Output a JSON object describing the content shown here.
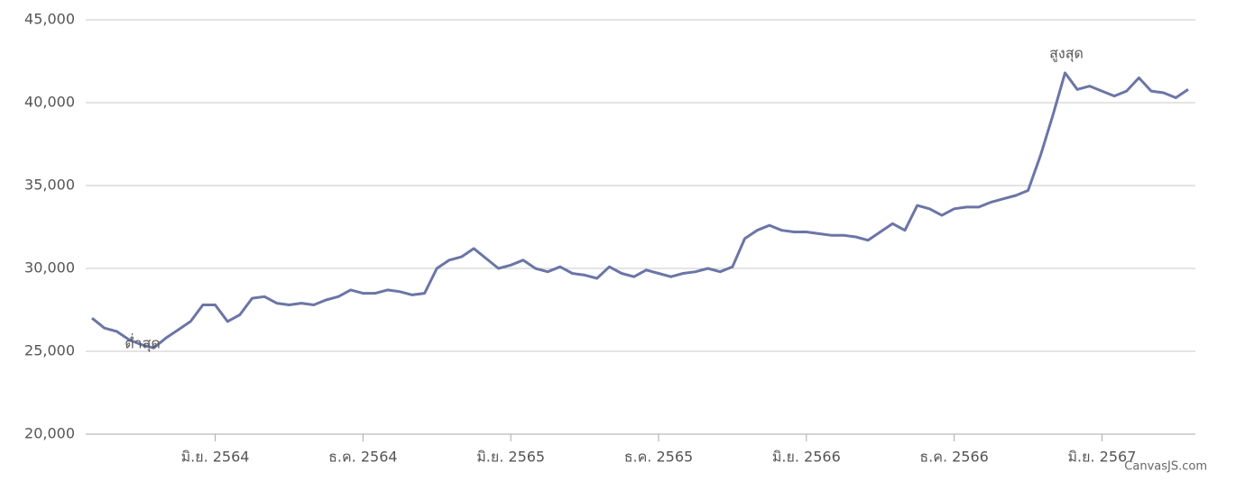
{
  "chart_data": {
    "type": "line",
    "categories": [
      null,
      null,
      null,
      null,
      null,
      null,
      null,
      null,
      null,
      null,
      "มิ.ย. 2564",
      null,
      null,
      null,
      null,
      null,
      null,
      null,
      null,
      null,
      null,
      null,
      "ธ.ค. 2564",
      null,
      null,
      null,
      null,
      null,
      null,
      null,
      null,
      null,
      null,
      null,
      "มิ.ย. 2565",
      null,
      null,
      null,
      null,
      null,
      null,
      null,
      null,
      null,
      null,
      null,
      "ธ.ค. 2565",
      null,
      null,
      null,
      null,
      null,
      null,
      null,
      null,
      null,
      null,
      null,
      "มิ.ย. 2566",
      null,
      null,
      null,
      null,
      null,
      null,
      null,
      null,
      null,
      null,
      null,
      "ธ.ค. 2566",
      null,
      null,
      null,
      null,
      null,
      null,
      null,
      null,
      null,
      null,
      null,
      "มิ.ย. 2567",
      null,
      null,
      null,
      null,
      null,
      null,
      null
    ],
    "values": [
      27000,
      26400,
      26200,
      25700,
      25400,
      25200,
      25800,
      26300,
      26800,
      27800,
      27800,
      26800,
      27200,
      28200,
      28300,
      27900,
      27800,
      27900,
      27800,
      28100,
      28300,
      28700,
      28500,
      28500,
      28700,
      28600,
      28400,
      28500,
      30000,
      30500,
      30700,
      31200,
      30600,
      30000,
      30200,
      30500,
      30000,
      29800,
      30100,
      29700,
      29600,
      29400,
      30100,
      29700,
      29500,
      29900,
      29700,
      29500,
      29700,
      29800,
      30000,
      29800,
      30100,
      31800,
      32300,
      32600,
      32300,
      32200,
      32200,
      32100,
      32000,
      32000,
      31900,
      31700,
      32200,
      32700,
      32300,
      33800,
      33600,
      33200,
      33600,
      33700,
      33700,
      34000,
      34200,
      34400,
      34700,
      36800,
      39200,
      41800,
      40800,
      41000,
      40700,
      40400,
      40700,
      41500,
      40700,
      40600,
      40300,
      40800
    ],
    "color": "#6b75a6",
    "ylim": [
      20000,
      45000
    ],
    "yticks": [
      {
        "value": 20000,
        "label": "20,000"
      },
      {
        "value": 25000,
        "label": "25,000"
      },
      {
        "value": 30000,
        "label": "30,000"
      },
      {
        "value": 35000,
        "label": "35,000"
      },
      {
        "value": 40000,
        "label": "40,000"
      },
      {
        "value": 45000,
        "label": "45,000"
      }
    ],
    "grid": true,
    "annotations": [
      "สูงสุด",
      "ต่ำสุด"
    ],
    "credit": "CanvasJS.com"
  }
}
